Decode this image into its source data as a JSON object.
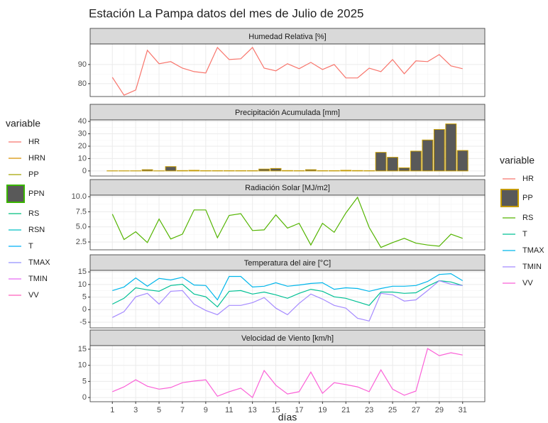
{
  "title": "Estación La Pampa datos del mes de Julio de 2025",
  "xlabel": "días",
  "x": [
    1,
    2,
    3,
    4,
    5,
    6,
    7,
    8,
    9,
    10,
    11,
    12,
    13,
    14,
    15,
    16,
    17,
    18,
    19,
    20,
    21,
    22,
    23,
    24,
    25,
    26,
    27,
    28,
    29,
    30,
    31
  ],
  "xlim": [
    -0.9,
    32.9
  ],
  "xticks": [
    1,
    3,
    5,
    7,
    9,
    11,
    13,
    15,
    17,
    19,
    21,
    23,
    25,
    27,
    29,
    31
  ],
  "grid": true,
  "legends": [
    {
      "title": "variable",
      "position": "left",
      "items": [
        {
          "name": "HR",
          "color": "#F8766D",
          "key": "line"
        },
        {
          "name": "HRN",
          "color": "#D89000",
          "key": "line"
        },
        {
          "name": "PP",
          "color": "#A3A500",
          "key": "line"
        },
        {
          "name": "PPN",
          "color": "#39B600",
          "key": "box"
        },
        {
          "name": "RS",
          "color": "#00BF7D",
          "key": "line"
        },
        {
          "name": "RSN",
          "color": "#00BFC4",
          "key": "line"
        },
        {
          "name": "T",
          "color": "#00B0F6",
          "key": "line"
        },
        {
          "name": "TMAX",
          "color": "#9590FF",
          "key": "line"
        },
        {
          "name": "TMIN",
          "color": "#E76BF3",
          "key": "line"
        },
        {
          "name": "VV",
          "color": "#FF62BC",
          "key": "line"
        }
      ]
    },
    {
      "title": "variable",
      "position": "right",
      "items": [
        {
          "name": "HR",
          "color": "#F8766D",
          "key": "line"
        },
        {
          "name": "PP",
          "color": "#C49A00",
          "key": "box"
        },
        {
          "name": "RS",
          "color": "#53B400",
          "key": "line"
        },
        {
          "name": "T",
          "color": "#00C094",
          "key": "line"
        },
        {
          "name": "TMAX",
          "color": "#00B6EB",
          "key": "line"
        },
        {
          "name": "TMIN",
          "color": "#A58AFF",
          "key": "line"
        },
        {
          "name": "VV",
          "color": "#FB61D7",
          "key": "line"
        }
      ]
    }
  ],
  "chart_data": [
    {
      "type": "line",
      "title": "Humedad Relativa [%]",
      "ylim": [
        73.3,
        100.7
      ],
      "yticks": [
        80,
        90
      ],
      "series": [
        {
          "name": "HR",
          "color": "#F8766D",
          "values": [
            83.3,
            74,
            76.7,
            97.4,
            90.4,
            91.5,
            88.1,
            86.3,
            85.6,
            98.9,
            92.6,
            93,
            98.9,
            88.1,
            86.7,
            90.4,
            87.8,
            91.1,
            87.4,
            90,
            83,
            83,
            88.1,
            86.3,
            92.6,
            85.2,
            91.9,
            91.5,
            95.2,
            89.3,
            87.8
          ]
        }
      ]
    },
    {
      "type": "bar",
      "title": "Precipitación Acumulada [mm]",
      "ylim": [
        -4.1,
        41.2
      ],
      "yticks": [
        0,
        10,
        20,
        30,
        40
      ],
      "series": [
        {
          "name": "PP",
          "color": "#595959",
          "edge": "#C49A00",
          "values": [
            0.1,
            0.1,
            0.1,
            1,
            0.1,
            3.5,
            0.3,
            0.5,
            0.2,
            0.2,
            0.2,
            0.2,
            0.2,
            1.5,
            2,
            0.3,
            0.2,
            1,
            0.2,
            0.2,
            0.5,
            0.3,
            0.2,
            15,
            11,
            2.5,
            16,
            25,
            33.5,
            38,
            16.5
          ]
        }
      ]
    },
    {
      "type": "line",
      "title": "Radiación Solar [MJ/m2]",
      "ylim": [
        1.2,
        10.25
      ],
      "yticks": [
        2.5,
        {
          "value": 5,
          "label": "5.0"
        },
        7.5,
        {
          "value": 10,
          "label": "10.0"
        }
      ],
      "series": [
        {
          "name": "RS",
          "color": "#53B400",
          "values": [
            7.1,
            2.9,
            4.2,
            2.4,
            6.3,
            3,
            3.8,
            7.8,
            7.8,
            3.2,
            6.9,
            7.2,
            4.4,
            4.5,
            7,
            4.8,
            5.6,
            2,
            5.6,
            4.1,
            7.3,
            9.9,
            4.9,
            1.6,
            2.4,
            3.1,
            2.3,
            2,
            1.8,
            3.8,
            3.1
          ]
        }
      ]
    },
    {
      "type": "line",
      "title": "Temperatura del aire [°C]",
      "ylim": [
        -7.25,
        15.6
      ],
      "yticks": [
        -5,
        0,
        5,
        10,
        15
      ],
      "series": [
        {
          "name": "T",
          "color": "#00C094",
          "values": [
            2.2,
            4.5,
            8.7,
            7.9,
            7.3,
            9.6,
            10.1,
            6.2,
            5.1,
            1.1,
            7.3,
            7.6,
            6.2,
            7,
            5.9,
            4.5,
            6.5,
            8.1,
            7.3,
            5.1,
            4.5,
            3.1,
            1.7,
            7,
            7,
            6.5,
            6.7,
            9.3,
            11.5,
            11,
            9.6
          ]
        },
        {
          "name": "TMAX",
          "color": "#00B6EB",
          "values": [
            7.6,
            9,
            12.6,
            9.3,
            12.4,
            11.8,
            12.9,
            9.8,
            9.6,
            3.9,
            13.2,
            13.2,
            9,
            9.3,
            10.7,
            9.3,
            9.8,
            10.4,
            10.7,
            8.1,
            8.7,
            8.4,
            7.3,
            8.4,
            9.3,
            9.3,
            9.6,
            11.2,
            14,
            14.3,
            11.5
          ]
        },
        {
          "name": "TMIN",
          "color": "#A58AFF",
          "values": [
            -3.1,
            -0.8,
            5.1,
            6.5,
            2.2,
            7.3,
            7.6,
            2.2,
            -0.3,
            -2,
            1.7,
            1.7,
            2.8,
            4.8,
            0.6,
            -2,
            2.5,
            6.2,
            4.2,
            1.7,
            0.6,
            -3.4,
            -4.5,
            6.5,
            5.9,
            3.4,
            3.9,
            7.6,
            11.5,
            10.1,
            9.6
          ]
        }
      ]
    },
    {
      "type": "line",
      "title": "Velocidad de Viento [km/h]",
      "ylim": [
        -1.3,
        16.1
      ],
      "yticks": [
        0,
        5,
        10,
        15
      ],
      "series": [
        {
          "name": "VV",
          "color": "#FB61D7",
          "values": [
            1.8,
            3.3,
            5.5,
            3.5,
            2.6,
            3.1,
            4.6,
            5.1,
            5.5,
            0.4,
            1.8,
            2.9,
            0,
            8.4,
            3.8,
            1.1,
            1.8,
            7.9,
            1.3,
            4.6,
            4,
            3.3,
            1.8,
            8.6,
            2.6,
            0.7,
            2,
            15.2,
            13,
            13.9,
            13.2
          ]
        }
      ]
    }
  ]
}
